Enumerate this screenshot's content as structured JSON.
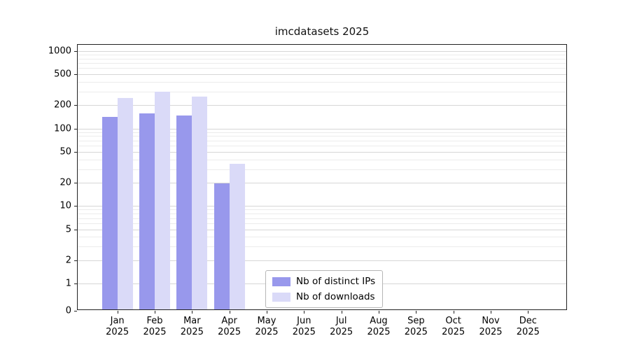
{
  "chart_data": {
    "type": "bar",
    "title": "imcdatasets 2025",
    "yscale": "symlog",
    "grid": true,
    "legend_position": "lower center",
    "categories": [
      "Jan",
      "Feb",
      "Mar",
      "Apr",
      "May",
      "Jun",
      "Jul",
      "Aug",
      "Sep",
      "Oct",
      "Nov",
      "Dec"
    ],
    "year": "2025",
    "yticks": [
      0,
      1,
      2,
      5,
      10,
      20,
      50,
      100,
      200,
      500,
      1000
    ],
    "ylim": [
      0,
      1200
    ],
    "series": [
      {
        "name": "Nb of distinct IPs",
        "color": "#9898ec",
        "values": [
          135,
          150,
          140,
          19,
          0,
          0,
          0,
          0,
          0,
          0,
          0,
          0
        ]
      },
      {
        "name": "Nb of downloads",
        "color": "#dadaf8",
        "values": [
          235,
          285,
          250,
          34,
          0,
          0,
          0,
          0,
          0,
          0,
          0,
          0
        ]
      }
    ]
  }
}
